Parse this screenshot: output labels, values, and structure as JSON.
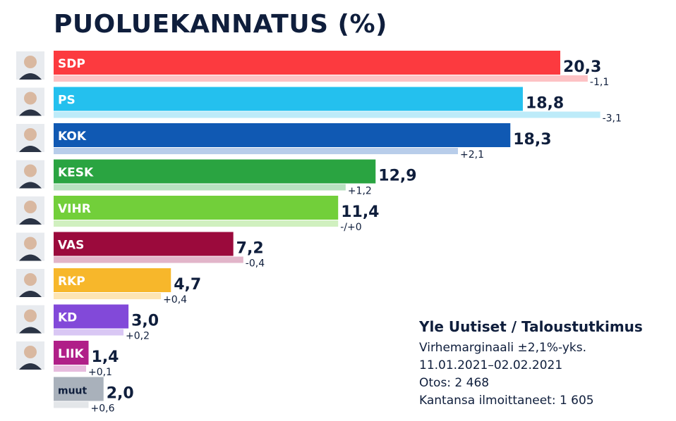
{
  "chart_data": {
    "type": "bar",
    "orientation": "horizontal",
    "title": "PUOLUEKANNATUS (%)",
    "unit": "%",
    "categories": [
      "SDP",
      "PS",
      "KOK",
      "KESK",
      "VIHR",
      "VAS",
      "RKP",
      "KD",
      "LIIK",
      "muut"
    ],
    "values": [
      20.3,
      18.8,
      18.3,
      12.9,
      11.4,
      7.2,
      4.7,
      3.0,
      1.4,
      2.0
    ],
    "value_labels": [
      "20,3",
      "18,8",
      "18,3",
      "12,9",
      "11,4",
      "7,2",
      "4,7",
      "3,0",
      "1,4",
      "2,0"
    ],
    "previous_values": [
      21.4,
      21.9,
      16.2,
      11.7,
      11.4,
      7.6,
      4.3,
      2.8,
      1.3,
      1.4
    ],
    "change_labels": [
      "-1,1",
      "-3,1",
      "+2,1",
      "+1,2",
      "-/+0",
      "-0,4",
      "+0,4",
      "+0,2",
      "+0,1",
      "+0,6"
    ],
    "colors": [
      "#fc3a3f",
      "#24c0ee",
      "#1059b3",
      "#2aa441",
      "#72cf3a",
      "#9b0a3c",
      "#f7b72b",
      "#8249d9",
      "#b01f88",
      "#a9b1bb"
    ],
    "previous_colors": [
      "#fdc2c4",
      "#bdebf9",
      "#b8cdea",
      "#b8e2c0",
      "#d0f0bf",
      "#e2b5c9",
      "#fde5b4",
      "#d9c7f4",
      "#e7bcde",
      "#e3e6e9"
    ],
    "has_portrait": [
      true,
      true,
      true,
      true,
      true,
      true,
      true,
      true,
      true,
      false
    ],
    "xlim": [
      0,
      20.3
    ],
    "grid": false,
    "legend": "none"
  },
  "source": {
    "heading": "Yle Uutiset / Taloustutkimus",
    "lines": [
      "Virhemarginaali ±2,1%-yks.",
      "11.01.2021–02.02.2021",
      "Otos: 2 468",
      "Kantansa ilmoittaneet: 1 605"
    ]
  }
}
